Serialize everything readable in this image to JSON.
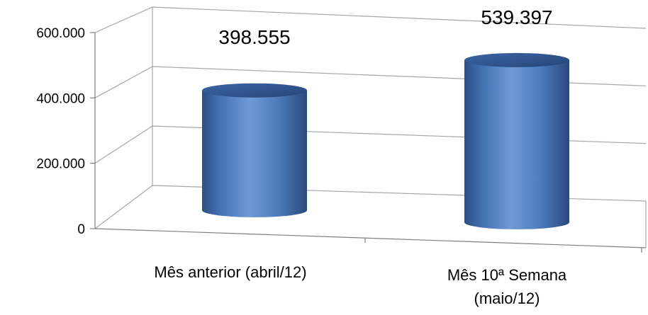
{
  "chart_data": {
    "type": "bar",
    "categories": [
      "Mês anterior (abril/12)",
      "Mês 10ª Semana (maio/12)"
    ],
    "category_lines": [
      [
        "Mês anterior (abril/12)"
      ],
      [
        "Mês 10ª Semana",
        "(maio/12)"
      ]
    ],
    "series": [
      {
        "values": [
          398555,
          539397
        ]
      }
    ],
    "data_labels": [
      "398.555",
      "539.397"
    ],
    "yticks": [
      0,
      200000,
      400000,
      600000
    ],
    "ytick_labels": [
      "0",
      "200.000",
      "400.000",
      "600.000"
    ],
    "ylim": [
      0,
      600000
    ],
    "bar_style": "3d-cylinder",
    "bar_color": "#4f81bd",
    "grid": true,
    "legend": "none"
  }
}
